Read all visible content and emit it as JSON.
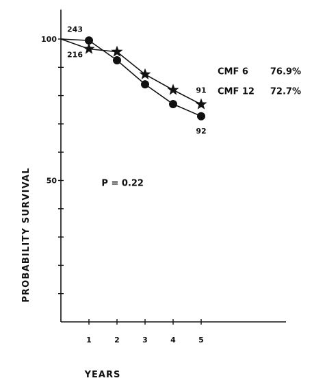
{
  "chart_data": {
    "type": "line",
    "xlabel": "YEARS",
    "ylabel": "PROBABILITY SURVIVAL",
    "xlim": [
      0,
      8
    ],
    "ylim": [
      0,
      100
    ],
    "x_ticks": [
      1,
      2,
      3,
      4,
      5
    ],
    "x_tick_labels": [
      "1",
      "2",
      "3",
      "4",
      "5"
    ],
    "y_tick_values": [
      10,
      20,
      30,
      40,
      50,
      60,
      70,
      80,
      90,
      100
    ],
    "y_tick_labels": [
      {
        "value": 100,
        "label": "100"
      },
      {
        "value": 50,
        "label": "50"
      }
    ],
    "series": [
      {
        "name": "CMF 6",
        "marker": "star",
        "result": "76.9%",
        "x": [
          0,
          1,
          2,
          3,
          4,
          5
        ],
        "y": [
          100,
          96.5,
          95.5,
          87.5,
          82,
          76.9
        ]
      },
      {
        "name": "CMF 12",
        "marker": "circle",
        "result": "72.7%",
        "x": [
          0,
          1,
          2,
          3,
          4,
          5
        ],
        "y": [
          100,
          99.5,
          92.5,
          84,
          77,
          72.7
        ]
      }
    ],
    "annotations": [
      {
        "text": "243",
        "x": 0.5,
        "y": 103.5
      },
      {
        "text": "216",
        "x": 0.5,
        "y": 94.5
      },
      {
        "text": "91",
        "x": 5,
        "y": 82
      },
      {
        "text": "92",
        "x": 5,
        "y": 67.5
      },
      {
        "text": "P = 0.22",
        "x": 2.2,
        "y": 49
      }
    ]
  }
}
